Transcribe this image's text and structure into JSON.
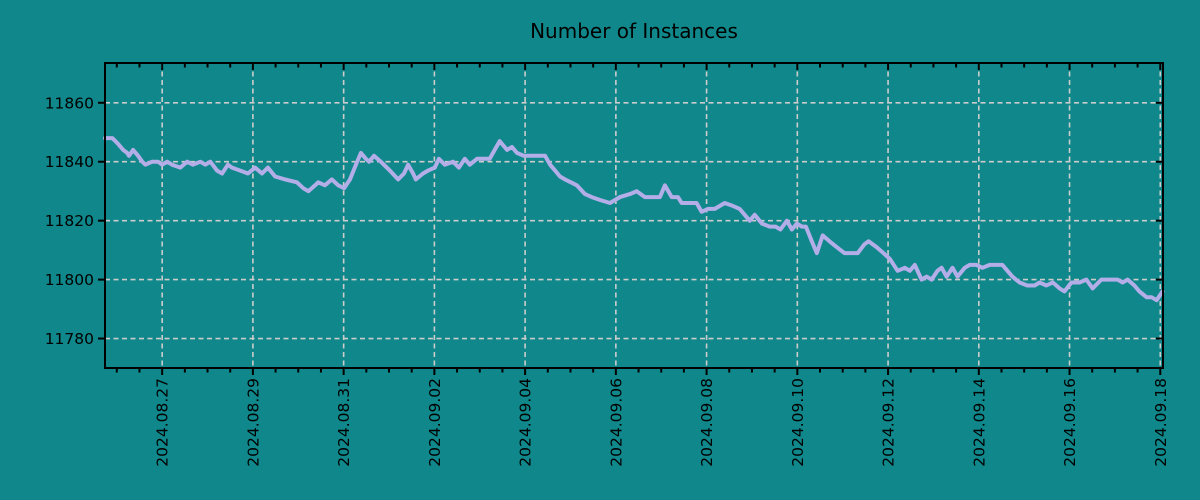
{
  "chart_data": {
    "type": "line",
    "title": "Number of Instances",
    "xlabel": "",
    "ylabel": "",
    "legend": "none",
    "grid": true,
    "x_unit": "days since 2024.08.27 00:00",
    "xlim": [
      -1.26,
      22.06
    ],
    "ylim": [
      11770,
      11873.5
    ],
    "y_ticks": [
      11780,
      11800,
      11820,
      11840,
      11860
    ],
    "y_tick_labels": [
      "11780",
      "11800",
      "11820",
      "11840",
      "11860"
    ],
    "x_major_ticks": {
      "positions": [
        0,
        2,
        4,
        6,
        8,
        10,
        12,
        14,
        16,
        18,
        20,
        22
      ],
      "labels": [
        "2024.08.27",
        "2024.08.29",
        "2024.08.31",
        "2024.09.02",
        "2024.09.04",
        "2024.09.06",
        "2024.09.08",
        "2024.09.10",
        "2024.09.12",
        "2024.09.14",
        "2024.09.16",
        "2024.09.18"
      ]
    },
    "x_minor_tick_interval_days": 0.5,
    "colors": {
      "background": "#10888b",
      "line": "#b3ade8",
      "grid": "#cccccc",
      "border": "#000000",
      "text": "#000000"
    },
    "series": [
      {
        "name": "instances",
        "points_format": [
          "days_since_2024.08.27",
          "count"
        ],
        "points": [
          [
            -1.26,
            11848
          ],
          [
            -1.1,
            11848
          ],
          [
            -0.97,
            11846
          ],
          [
            -0.86,
            11844
          ],
          [
            -0.77,
            11843
          ],
          [
            -0.73,
            11842
          ],
          [
            -0.64,
            11844
          ],
          [
            -0.53,
            11842
          ],
          [
            -0.44,
            11840
          ],
          [
            -0.37,
            11839
          ],
          [
            -0.22,
            11840
          ],
          [
            -0.09,
            11840
          ],
          [
            0,
            11839
          ],
          [
            0.11,
            11840
          ],
          [
            0.22,
            11839
          ],
          [
            0.4,
            11838
          ],
          [
            0.55,
            11840
          ],
          [
            0.68,
            11839
          ],
          [
            0.84,
            11840
          ],
          [
            0.95,
            11839
          ],
          [
            1.06,
            11840
          ],
          [
            1.21,
            11837
          ],
          [
            1.32,
            11836
          ],
          [
            1.45,
            11839
          ],
          [
            1.54,
            11838
          ],
          [
            1.72,
            11837
          ],
          [
            1.89,
            11836
          ],
          [
            2.05,
            11838
          ],
          [
            2.2,
            11836
          ],
          [
            2.33,
            11838
          ],
          [
            2.49,
            11835
          ],
          [
            2.71,
            11834
          ],
          [
            2.97,
            11833
          ],
          [
            3.11,
            11831
          ],
          [
            3.22,
            11830
          ],
          [
            3.37,
            11832
          ],
          [
            3.44,
            11833
          ],
          [
            3.59,
            11832
          ],
          [
            3.74,
            11834
          ],
          [
            3.88,
            11832
          ],
          [
            4.01,
            11831
          ],
          [
            4.14,
            11834
          ],
          [
            4.27,
            11839
          ],
          [
            4.38,
            11843
          ],
          [
            4.49,
            11841
          ],
          [
            4.56,
            11840
          ],
          [
            4.67,
            11842
          ],
          [
            4.82,
            11840
          ],
          [
            5.02,
            11837
          ],
          [
            5.2,
            11834
          ],
          [
            5.33,
            11836
          ],
          [
            5.42,
            11839
          ],
          [
            5.53,
            11836
          ],
          [
            5.59,
            11834
          ],
          [
            5.75,
            11836
          ],
          [
            5.86,
            11837
          ],
          [
            6.01,
            11838
          ],
          [
            6.1,
            11841
          ],
          [
            6.23,
            11839
          ],
          [
            6.41,
            11840
          ],
          [
            6.54,
            11838
          ],
          [
            6.67,
            11841
          ],
          [
            6.78,
            11839
          ],
          [
            6.94,
            11841
          ],
          [
            7.11,
            11841
          ],
          [
            7.22,
            11841
          ],
          [
            7.33,
            11844
          ],
          [
            7.44,
            11847
          ],
          [
            7.6,
            11844
          ],
          [
            7.71,
            11845
          ],
          [
            7.82,
            11843
          ],
          [
            7.97,
            11842
          ],
          [
            8.44,
            11842
          ],
          [
            8.55,
            11839
          ],
          [
            8.66,
            11837
          ],
          [
            8.77,
            11835
          ],
          [
            8.88,
            11834
          ],
          [
            9.01,
            11833
          ],
          [
            9.14,
            11832
          ],
          [
            9.32,
            11829
          ],
          [
            9.47,
            11828
          ],
          [
            9.65,
            11827
          ],
          [
            9.87,
            11826
          ],
          [
            10.09,
            11828
          ],
          [
            10.31,
            11829
          ],
          [
            10.46,
            11830
          ],
          [
            10.64,
            11828
          ],
          [
            10.79,
            11828
          ],
          [
            10.97,
            11828
          ],
          [
            11.08,
            11832
          ],
          [
            11.23,
            11828
          ],
          [
            11.37,
            11828
          ],
          [
            11.45,
            11826
          ],
          [
            11.63,
            11826
          ],
          [
            11.78,
            11826
          ],
          [
            11.89,
            11823
          ],
          [
            12.03,
            11824
          ],
          [
            12.18,
            11824
          ],
          [
            12.4,
            11826
          ],
          [
            12.58,
            11825
          ],
          [
            12.73,
            11824
          ],
          [
            12.95,
            11820
          ],
          [
            13.06,
            11822
          ],
          [
            13.22,
            11819
          ],
          [
            13.39,
            11818
          ],
          [
            13.52,
            11818
          ],
          [
            13.63,
            11817
          ],
          [
            13.77,
            11820
          ],
          [
            13.88,
            11817
          ],
          [
            13.99,
            11819
          ],
          [
            14.1,
            11818
          ],
          [
            14.19,
            11818
          ],
          [
            14.32,
            11813
          ],
          [
            14.43,
            11809
          ],
          [
            14.56,
            11815
          ],
          [
            14.71,
            11813
          ],
          [
            14.87,
            11811
          ],
          [
            15.04,
            11809
          ],
          [
            15.2,
            11809
          ],
          [
            15.33,
            11809
          ],
          [
            15.48,
            11812
          ],
          [
            15.57,
            11813
          ],
          [
            15.75,
            11811
          ],
          [
            15.9,
            11809
          ],
          [
            16.04,
            11807
          ],
          [
            16.21,
            11803
          ],
          [
            16.37,
            11804
          ],
          [
            16.48,
            11803
          ],
          [
            16.59,
            11805
          ],
          [
            16.74,
            11800
          ],
          [
            16.85,
            11801
          ],
          [
            16.96,
            11800
          ],
          [
            17.09,
            11803
          ],
          [
            17.18,
            11804
          ],
          [
            17.29,
            11801
          ],
          [
            17.42,
            11804
          ],
          [
            17.53,
            11801
          ],
          [
            17.69,
            11804
          ],
          [
            17.8,
            11805
          ],
          [
            17.95,
            11805
          ],
          [
            18.08,
            11804
          ],
          [
            18.24,
            11805
          ],
          [
            18.39,
            11805
          ],
          [
            18.52,
            11805
          ],
          [
            18.63,
            11803
          ],
          [
            18.74,
            11801
          ],
          [
            18.9,
            11799
          ],
          [
            19.07,
            11798
          ],
          [
            19.23,
            11798
          ],
          [
            19.34,
            11799
          ],
          [
            19.49,
            11798
          ],
          [
            19.63,
            11799
          ],
          [
            19.78,
            11797
          ],
          [
            19.89,
            11796
          ],
          [
            20.04,
            11799
          ],
          [
            20.22,
            11799
          ],
          [
            20.37,
            11800
          ],
          [
            20.51,
            11797
          ],
          [
            20.7,
            11800
          ],
          [
            20.88,
            11800
          ],
          [
            21.06,
            11800
          ],
          [
            21.17,
            11799
          ],
          [
            21.28,
            11800
          ],
          [
            21.43,
            11798
          ],
          [
            21.54,
            11796
          ],
          [
            21.7,
            11794
          ],
          [
            21.81,
            11794
          ],
          [
            21.92,
            11793
          ],
          [
            22.05,
            11796
          ]
        ]
      }
    ]
  }
}
